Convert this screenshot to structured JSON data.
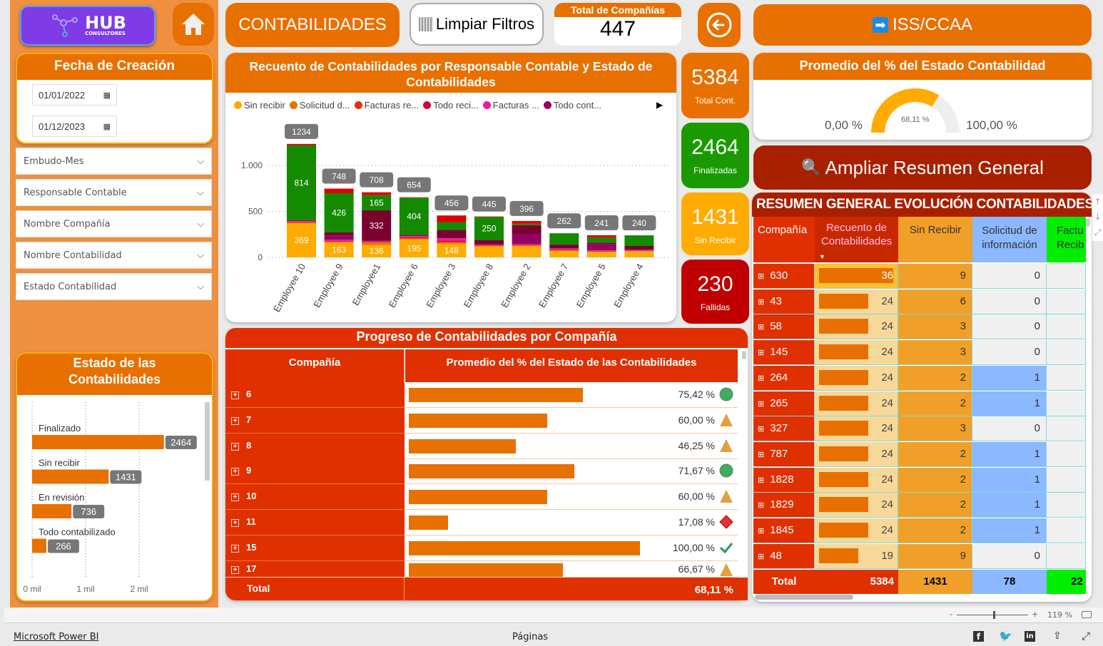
{
  "header": {
    "logo_text": "HUB",
    "logo_sub": "CONSULTORES",
    "title": "CONTABILIDADES",
    "clear_filters": "Limpiar Filtros",
    "companies_label": "Total de Compañías",
    "companies_value": "447",
    "iss_button": "ISS/CCAA",
    "expand_button": "Ampliar Resumen General"
  },
  "filters": {
    "date_title": "Fecha de Creación",
    "date_from": "01/01/2022",
    "date_to": "01/12/2023",
    "slicers": [
      "Embudo-Mes",
      "Responsable Contable",
      "Nombre Compañía",
      "Nombre Contabilidad",
      "Estado Contabilidad"
    ]
  },
  "kpis": [
    {
      "value": "5384",
      "label": "Total Cont.",
      "color": "#e87000"
    },
    {
      "value": "2464",
      "label": "Finalizadas",
      "color": "#1a9a00"
    },
    {
      "value": "1431",
      "label": "Sin Recibir",
      "color": "#ffab00"
    },
    {
      "value": "230",
      "label": "Fallidas",
      "color": "#c00000"
    }
  ],
  "gauge": {
    "title": "Promedio del % del Estado Contabilidad",
    "min": "0,00 %",
    "max": "100,00 %",
    "value_label": "68,11 %",
    "value": 68.11
  },
  "chart_data": [
    {
      "type": "bar",
      "stacked": true,
      "title": "Recuento de Contabilidades por Responsable Contable y Estado de Contabilidades",
      "ylim": [
        0,
        1300
      ],
      "yticks": [
        {
          "v": 0,
          "label": "0"
        },
        {
          "v": 500,
          "label": "500"
        },
        {
          "v": 1000,
          "label": "1.000"
        }
      ],
      "legend": [
        "Sin recibir",
        "Solicitud d...",
        "Facturas re...",
        "Todo reci...",
        "Facturas ...",
        "Todo cont..."
      ],
      "categories": [
        "Employee 10",
        "Employee 9",
        "Employee1",
        "Employee 6",
        "Employee 3",
        "Employee 8",
        "Employee 2",
        "Employee 7",
        "Employee 5",
        "Employee 4"
      ],
      "totals": [
        1234,
        748,
        708,
        654,
        456,
        445,
        396,
        262,
        241,
        240
      ],
      "series": [
        {
          "name": "Sin recibir",
          "color": "#ffab00",
          "values": [
            369,
            163,
            136,
            195,
            148,
            120,
            125,
            70,
            60,
            65
          ]
        },
        {
          "name": "Solicitud d...",
          "color": "#e87000",
          "values": [
            10,
            5,
            25,
            10,
            15,
            5,
            3,
            5,
            3,
            3
          ]
        },
        {
          "name": "Facturas re...",
          "color": "#e23000",
          "values": [
            5,
            5,
            3,
            5,
            5,
            3,
            3,
            5,
            3,
            3
          ]
        },
        {
          "name": "Todo reci...",
          "color": "#d6003d",
          "values": [
            5,
            5,
            3,
            10,
            15,
            3,
            5,
            5,
            5,
            3
          ]
        },
        {
          "name": "Facturas ...",
          "color": "#f0189a",
          "values": [
            5,
            15,
            8,
            10,
            25,
            5,
            10,
            10,
            5,
            5
          ]
        },
        {
          "name": "Todo cont...",
          "color": "#960060",
          "values": [
            10,
            45,
            5,
            5,
            5,
            5,
            110,
            5,
            70,
            5
          ]
        },
        {
          "name": "",
          "color": "#7a0030",
          "values": [
            0,
            34,
            332,
            10,
            85,
            48,
            95,
            40,
            15,
            40
          ]
        },
        {
          "name": "",
          "color": "#138a00",
          "values": [
            814,
            426,
            165,
            404,
            85,
            250,
            15,
            122,
            55,
            116
          ]
        },
        {
          "name": "",
          "color": "#dd0000",
          "values": [
            16,
            50,
            31,
            5,
            73,
            6,
            30,
            0,
            25,
            0
          ]
        }
      ]
    },
    {
      "type": "bar",
      "orientation": "horizontal",
      "title": "Estado de las Contabilidades",
      "categories": [
        "Finalizado",
        "Sin recibir",
        "En revisión",
        "Todo contabilizado"
      ],
      "values": [
        2464,
        1431,
        736,
        266
      ],
      "xticks": [
        "0 mil",
        "1 mil",
        "2 mil"
      ],
      "xlim": [
        0,
        3000
      ]
    }
  ],
  "progress": {
    "title": "Progreso de Contabilidades por Compañía",
    "col1": "Compañía",
    "col2": "Promedio del % del Estado de las Contabilidades",
    "rows": [
      {
        "c": "6",
        "v": "75,42 %",
        "p": 75.42,
        "icon": "circle"
      },
      {
        "c": "7",
        "v": "60,00 %",
        "p": 60,
        "icon": "triangle"
      },
      {
        "c": "8",
        "v": "46,25 %",
        "p": 46.25,
        "icon": "triangle"
      },
      {
        "c": "9",
        "v": "71,67 %",
        "p": 71.67,
        "icon": "circle"
      },
      {
        "c": "10",
        "v": "60,00 %",
        "p": 60,
        "icon": "triangle"
      },
      {
        "c": "11",
        "v": "17,08 %",
        "p": 17.08,
        "icon": "diamond"
      },
      {
        "c": "15",
        "v": "100,00 %",
        "p": 100,
        "icon": "check"
      },
      {
        "c": "17",
        "v": "66,67 %",
        "p": 66.67,
        "icon": "triangle"
      }
    ],
    "total_label": "Total",
    "total_value": "68,11 %"
  },
  "summary": {
    "title": "RESUMEN GENERAL EVOLUCIÓN CONTABILIDADES",
    "cols": [
      "Compañía",
      "Recuento de Contabilidades",
      "Sin Recibir",
      "Solicitud de información",
      "Factu Recib"
    ],
    "rows": [
      [
        "630",
        36,
        9,
        0
      ],
      [
        "43",
        24,
        6,
        0
      ],
      [
        "58",
        24,
        3,
        0
      ],
      [
        "145",
        24,
        3,
        0
      ],
      [
        "264",
        24,
        2,
        1
      ],
      [
        "265",
        24,
        2,
        1
      ],
      [
        "327",
        24,
        3,
        0
      ],
      [
        "787",
        24,
        2,
        1
      ],
      [
        "1828",
        24,
        2,
        1
      ],
      [
        "1829",
        24,
        2,
        1
      ],
      [
        "1845",
        24,
        2,
        1
      ],
      [
        "48",
        19,
        9,
        0
      ]
    ],
    "total": [
      "Total",
      "5384",
      "1431",
      "78",
      "22"
    ]
  },
  "statusbar": {
    "zoom": "119 %",
    "zoom_minus": "-",
    "zoom_plus": "+"
  },
  "footer": {
    "brand": "Microsoft Power BI",
    "pages": "Páginas"
  }
}
